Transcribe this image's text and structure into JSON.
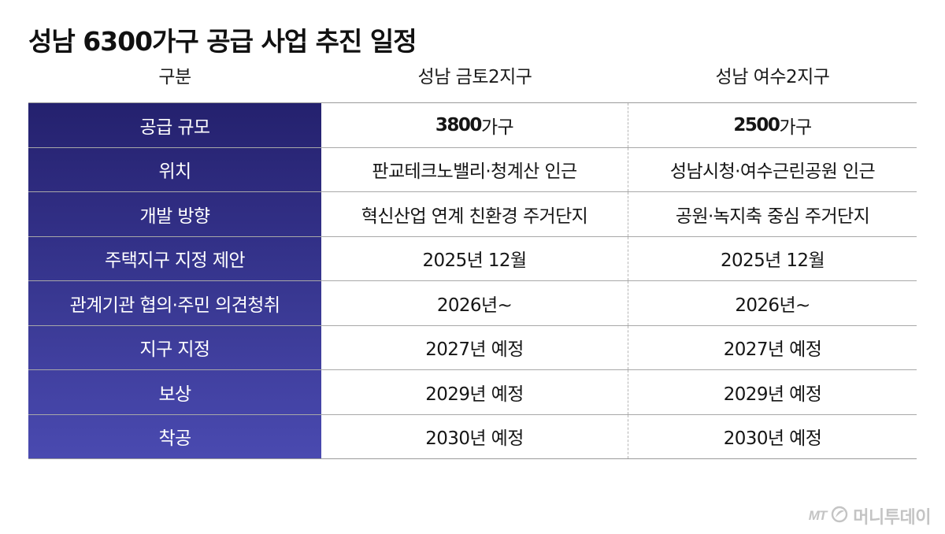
{
  "title": "성남 6300가구 공급 사업 추진 일정",
  "colors": {
    "label_gradient_top": "#24216e",
    "label_gradient_bottom": "#4a4ab0",
    "grid_line": "#a8a8a8",
    "brand_gray": "#c4c4c4"
  },
  "table": {
    "headers": [
      "구분",
      "성남 금토2지구",
      "성남 여수2지구"
    ],
    "rows": [
      {
        "label": "공급 규모",
        "v1_num": "3800",
        "v1_unit": "가구",
        "v2_num": "2500",
        "v2_unit": "가구"
      },
      {
        "label": "위치",
        "v1": "판교테크노밸리·청계산 인근",
        "v2": "성남시청·여수근린공원 인근"
      },
      {
        "label": "개발 방향",
        "v1": "혁신산업 연계 친환경 주거단지",
        "v2": "공원·녹지축 중심 주거단지"
      },
      {
        "label": "주택지구 지정 제안",
        "v1": "2025년 12월",
        "v2": "2025년 12월"
      },
      {
        "label": "관계기관 협의·주민 의견청취",
        "v1": "2026년~",
        "v2": "2026년~"
      },
      {
        "label": "지구 지정",
        "v1": "2027년 예정",
        "v2": "2027년 예정"
      },
      {
        "label": "보상",
        "v1": "2029년 예정",
        "v2": "2029년 예정"
      },
      {
        "label": "착공",
        "v1": "2030년 예정",
        "v2": "2030년 예정"
      }
    ]
  },
  "brand": {
    "logo_text": "MT",
    "logo_icon": "leaf-circle-icon",
    "name": "머니투데이"
  }
}
